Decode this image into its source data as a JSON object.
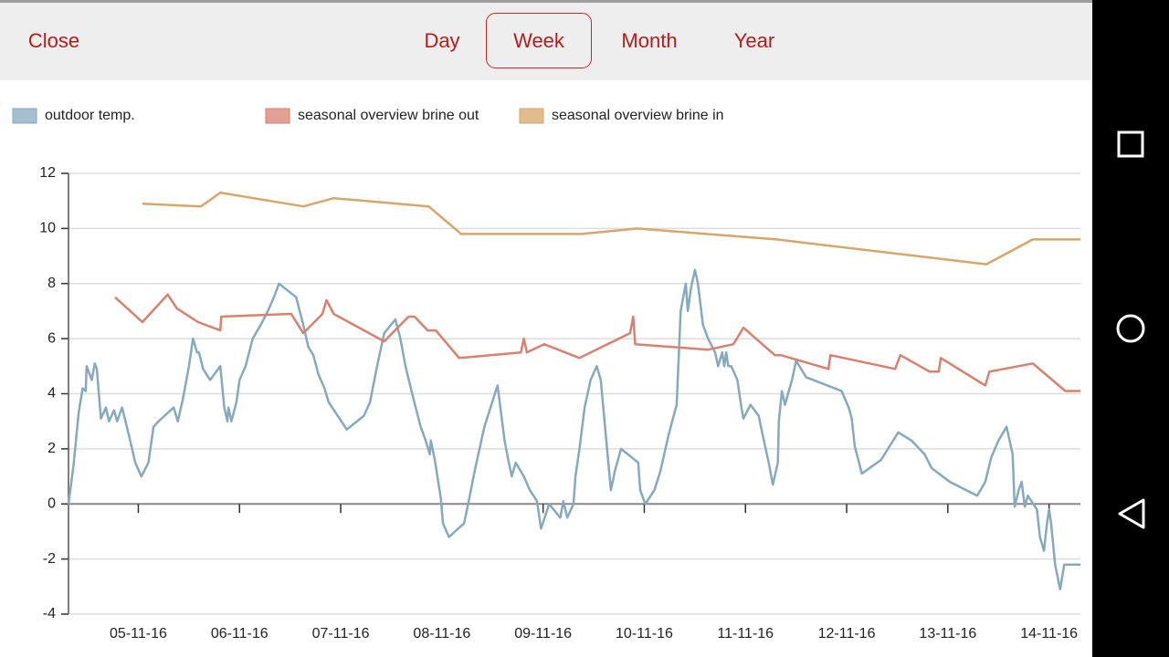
{
  "toolbar": {
    "close": "Close",
    "tabs": [
      "Day",
      "Week",
      "Month",
      "Year"
    ]
  },
  "chart_data": {
    "type": "line",
    "xlim": [
      4.31,
      14.31
    ],
    "xticks": [
      {
        "value": 5,
        "label": "05-11-16"
      },
      {
        "value": 6,
        "label": "06-11-16"
      },
      {
        "value": 7,
        "label": "07-11-16"
      },
      {
        "value": 8,
        "label": "08-11-16"
      },
      {
        "value": 9,
        "label": "09-11-16"
      },
      {
        "value": 10,
        "label": "10-11-16"
      },
      {
        "value": 11,
        "label": "11-11-16"
      },
      {
        "value": 12,
        "label": "12-11-16"
      },
      {
        "value": 13,
        "label": "13-11-16"
      },
      {
        "value": 14,
        "label": "14-11-16"
      }
    ],
    "ylim": [
      -4,
      12
    ],
    "yticks": [
      -4,
      -2,
      0,
      2,
      4,
      6,
      8,
      10,
      12
    ],
    "grid": true,
    "series": [
      {
        "name": "outdoor temp.",
        "color": "#86a9c0",
        "x": [
          4.31,
          4.36,
          4.41,
          4.45,
          4.48,
          4.49,
          4.52,
          4.54,
          4.57,
          4.59,
          4.63,
          4.68,
          4.71,
          4.76,
          4.79,
          4.84,
          4.9,
          4.97,
          5.03,
          5.1,
          5.15,
          5.2,
          5.35,
          5.39,
          5.44,
          5.5,
          5.54,
          5.58,
          5.6,
          5.64,
          5.71,
          5.81,
          5.85,
          5.88,
          5.89,
          5.92,
          5.97,
          6.0,
          6.06,
          6.13,
          6.21,
          6.28,
          6.34,
          6.39,
          6.56,
          6.63,
          6.68,
          6.73,
          6.78,
          6.84,
          6.88,
          7.06,
          7.23,
          7.29,
          7.36,
          7.43,
          7.54,
          7.59,
          7.64,
          7.72,
          7.79,
          7.84,
          7.88,
          7.89,
          7.93,
          7.99,
          8.01,
          8.07,
          8.22,
          8.27,
          8.33,
          8.42,
          8.55,
          8.62,
          8.65,
          8.69,
          8.73,
          8.81,
          8.87,
          8.94,
          8.98,
          9.06,
          9.17,
          9.2,
          9.24,
          9.3,
          9.32,
          9.36,
          9.41,
          9.47,
          9.53,
          9.57,
          9.62,
          9.67,
          9.71,
          9.77,
          9.94,
          9.96,
          10.01,
          10.1,
          10.16,
          10.24,
          10.32,
          10.36,
          10.41,
          10.43,
          10.46,
          10.5,
          10.53,
          10.58,
          10.63,
          10.7,
          10.73,
          10.77,
          10.79,
          10.81,
          10.83,
          10.86,
          10.92,
          10.96,
          10.98,
          11.05,
          11.13,
          11.17,
          11.23,
          11.27,
          11.32,
          11.33,
          11.36,
          11.39,
          11.46,
          11.5,
          11.6,
          11.95,
          12.02,
          12.05,
          12.08,
          12.15,
          12.34,
          12.51,
          12.64,
          12.77,
          12.84,
          13.02,
          13.29,
          13.37,
          13.43,
          13.5,
          13.58,
          13.64,
          13.66,
          13.7,
          13.73,
          13.76,
          13.79,
          13.88,
          13.91,
          13.95,
          13.98,
          14.0,
          14.02,
          14.06,
          14.11,
          14.15,
          14.31
        ],
        "values": [
          0,
          1.4,
          3.3,
          4.2,
          4.1,
          5.0,
          4.7,
          4.5,
          5.1,
          4.9,
          3.1,
          3.5,
          3.0,
          3.4,
          3.0,
          3.5,
          2.6,
          1.5,
          1.0,
          1.5,
          2.8,
          3.0,
          3.5,
          3.0,
          3.8,
          5.0,
          6.0,
          5.5,
          5.5,
          4.9,
          4.5,
          5.0,
          3.5,
          3.0,
          3.5,
          3.0,
          3.7,
          4.5,
          5.0,
          6.0,
          6.5,
          7.0,
          7.5,
          8.0,
          7.5,
          6.5,
          5.7,
          5.4,
          4.7,
          4.2,
          3.7,
          2.7,
          3.2,
          3.7,
          5.0,
          6.2,
          6.7,
          6.0,
          5.0,
          3.8,
          2.8,
          2.3,
          1.8,
          2.3,
          1.6,
          0.2,
          -0.7,
          -1.2,
          -0.7,
          0.2,
          1.3,
          2.8,
          4.3,
          2.3,
          1.7,
          1.0,
          1.5,
          1.0,
          0.5,
          0.1,
          -0.9,
          0.0,
          -0.5,
          0.1,
          -0.5,
          0.0,
          1.0,
          2.0,
          3.5,
          4.5,
          5.0,
          4.5,
          2.5,
          0.5,
          1.2,
          2.0,
          1.5,
          0.5,
          0.0,
          0.5,
          1.2,
          2.5,
          3.6,
          7.0,
          8.0,
          7.0,
          7.8,
          8.5,
          8.0,
          6.5,
          6.0,
          5.5,
          5.0,
          5.5,
          5.0,
          5.5,
          5.0,
          5.0,
          4.5,
          3.5,
          3.1,
          3.6,
          3.2,
          2.5,
          1.5,
          0.7,
          1.5,
          3.0,
          4.1,
          3.6,
          4.5,
          5.2,
          4.6,
          4.1,
          3.5,
          3.1,
          2.1,
          1.1,
          1.6,
          2.6,
          2.3,
          1.8,
          1.3,
          0.8,
          0.3,
          0.8,
          1.7,
          2.3,
          2.8,
          1.8,
          -0.1,
          0.5,
          0.8,
          -0.1,
          0.3,
          -0.2,
          -1.2,
          -1.7,
          -0.7,
          -0.2,
          -0.7,
          -2.2,
          -3.1,
          -2.2,
          -2.2
        ]
      },
      {
        "name": "seasonal overview brine out",
        "color": "#d9806f",
        "x": [
          4.77,
          5.04,
          5.29,
          5.38,
          5.59,
          5.81,
          5.82,
          6.51,
          6.63,
          6.82,
          6.86,
          6.93,
          7.43,
          7.67,
          7.73,
          7.86,
          7.94,
          8.17,
          8.78,
          8.81,
          8.84,
          9.01,
          9.36,
          9.86,
          9.89,
          9.91,
          10.63,
          10.88,
          10.98,
          11.29,
          11.35,
          11.82,
          11.84,
          12.48,
          12.53,
          12.82,
          12.91,
          12.93,
          13.37,
          13.41,
          13.84,
          14.16,
          14.31
        ],
        "values": [
          7.5,
          6.6,
          7.6,
          7.1,
          6.6,
          6.3,
          6.8,
          6.9,
          6.2,
          6.9,
          7.4,
          6.9,
          5.9,
          6.8,
          6.8,
          6.3,
          6.3,
          5.3,
          5.5,
          6.0,
          5.5,
          5.8,
          5.3,
          6.2,
          6.8,
          5.8,
          5.6,
          5.8,
          6.4,
          5.4,
          5.4,
          4.9,
          5.4,
          4.9,
          5.4,
          4.8,
          4.8,
          5.3,
          4.3,
          4.8,
          5.1,
          4.1,
          4.1
        ]
      },
      {
        "name": "seasonal overview brine in",
        "color": "#d6a66a",
        "x": [
          5.04,
          5.62,
          5.81,
          6.63,
          6.93,
          7.87,
          8.19,
          9.38,
          9.93,
          11.31,
          13.38,
          13.84,
          14.31
        ],
        "values": [
          10.9,
          10.8,
          11.3,
          10.8,
          11.1,
          10.8,
          9.8,
          9.8,
          10.0,
          9.6,
          8.7,
          9.6,
          9.6
        ]
      }
    ]
  }
}
